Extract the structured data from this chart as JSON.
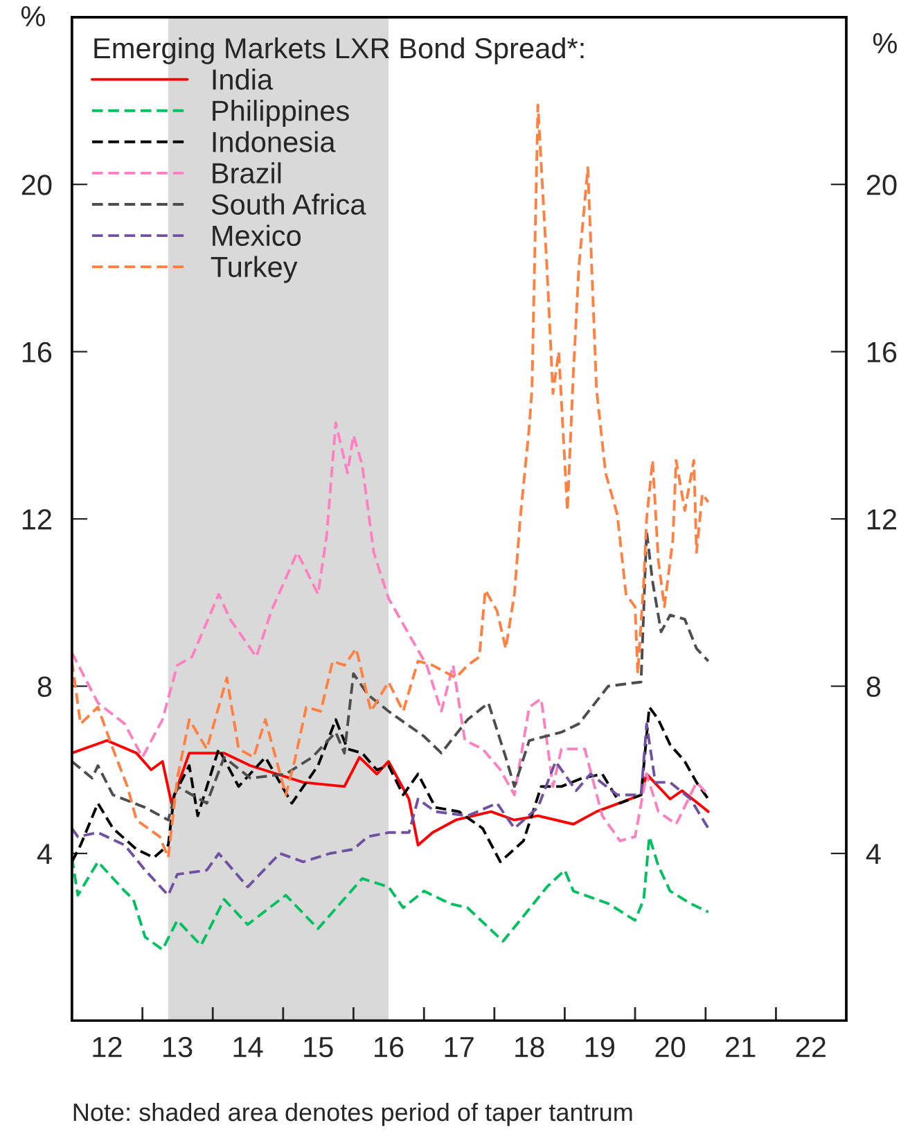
{
  "chart_data": {
    "type": "line",
    "legend_title": "Emerging Markets LXR Bond Spread*:",
    "ylabel": "%",
    "y2label": "%",
    "xlim": [
      "2012-01-01",
      "2023-01-01"
    ],
    "xticks": [
      {
        "value": "2013-01-01",
        "label": null
      },
      {
        "value": "2014-01-01",
        "label": null
      },
      {
        "value": "2015-01-01",
        "label": null
      },
      {
        "value": "2016-01-01",
        "label": null
      },
      {
        "value": "2017-01-01",
        "label": null
      },
      {
        "value": "2018-01-01",
        "label": null
      },
      {
        "value": "2019-01-01",
        "label": null
      },
      {
        "value": "2020-01-01",
        "label": null
      },
      {
        "value": "2021-01-01",
        "label": null
      },
      {
        "value": "2022-01-01",
        "label": null
      },
      {
        "value": "2012-07-01",
        "label": "12"
      },
      {
        "value": "2013-07-01",
        "label": "13"
      },
      {
        "value": "2014-07-01",
        "label": "14"
      },
      {
        "value": "2015-07-01",
        "label": "15"
      },
      {
        "value": "2016-07-01",
        "label": "16"
      },
      {
        "value": "2017-07-01",
        "label": "17"
      },
      {
        "value": "2018-07-01",
        "label": "18"
      },
      {
        "value": "2019-07-01",
        "label": "19"
      },
      {
        "value": "2020-07-01",
        "label": "20"
      },
      {
        "value": "2021-07-01",
        "label": "21"
      },
      {
        "value": "2022-07-01",
        "label": "22"
      }
    ],
    "ylim": [
      0,
      24
    ],
    "yticks": [
      4,
      8,
      12,
      16,
      20
    ],
    "y2lim": [
      0,
      24
    ],
    "y2ticks": [
      4,
      8,
      12,
      16,
      20
    ],
    "grid": false,
    "legend": "top left",
    "bands": [
      {
        "axis": "x",
        "from": "2013-05-15",
        "to": "2016-07-01",
        "color": "#d9d9d9"
      }
    ],
    "annotations": [
      "Note: shaded area denotes period of taper tantrum"
    ],
    "series": [
      {
        "name": "India",
        "color": "#ff0000",
        "line_style": "solid",
        "x": [
          "2012-01-01",
          "2012-07-01",
          "2012-12-01",
          "2013-02-15",
          "2013-04-15",
          "2013-06-01",
          "2013-09-01",
          "2014-03-01",
          "2014-07-15",
          "2015-04-15",
          "2015-11-15",
          "2016-02-01",
          "2016-05-01",
          "2016-07-01",
          "2016-10-15",
          "2016-12-01",
          "2017-02-15",
          "2017-06-15",
          "2017-12-15",
          "2018-04-15",
          "2018-08-15",
          "2019-02-15",
          "2019-06-15",
          "2020-02-01",
          "2020-03-01",
          "2020-07-01",
          "2020-09-01",
          "2021-01-15"
        ],
        "values": [
          6.4,
          6.7,
          6.4,
          6.0,
          6.2,
          5.2,
          6.4,
          6.4,
          6.1,
          5.7,
          5.6,
          6.3,
          5.9,
          6.2,
          5.3,
          4.2,
          4.5,
          4.8,
          5.0,
          4.8,
          4.9,
          4.7,
          5.0,
          5.4,
          5.9,
          5.3,
          5.5,
          5.0
        ]
      },
      {
        "name": "Philippines",
        "color": "#00c060",
        "line_style": "dashed",
        "x": [
          "2012-01-01",
          "2012-02-01",
          "2012-05-15",
          "2012-10-01",
          "2012-11-15",
          "2013-01-15",
          "2013-04-15",
          "2013-07-01",
          "2013-11-01",
          "2014-03-01",
          "2014-07-01",
          "2015-01-15",
          "2015-07-01",
          "2015-12-01",
          "2016-02-15",
          "2016-07-01",
          "2016-09-15",
          "2017-01-01",
          "2017-05-15",
          "2017-08-15",
          "2018-02-15",
          "2018-06-01",
          "2018-10-01",
          "2019-01-01",
          "2019-02-15",
          "2019-08-15",
          "2020-01-01",
          "2020-02-15",
          "2020-03-15",
          "2020-05-01",
          "2020-07-01",
          "2020-10-15",
          "2021-01-15"
        ],
        "values": [
          3.9,
          3.0,
          3.8,
          3.1,
          2.9,
          2.0,
          1.7,
          2.4,
          1.8,
          2.9,
          2.3,
          3.0,
          2.2,
          3.0,
          3.4,
          3.2,
          2.7,
          3.1,
          2.8,
          2.7,
          1.9,
          2.5,
          3.2,
          3.6,
          3.1,
          2.8,
          2.4,
          2.9,
          4.4,
          3.7,
          3.1,
          2.8,
          2.6
        ]
      },
      {
        "name": "Indonesia",
        "color": "#000000",
        "line_style": "dashed",
        "x": [
          "2012-01-01",
          "2012-02-15",
          "2012-05-15",
          "2012-08-01",
          "2012-12-01",
          "2013-03-01",
          "2013-05-15",
          "2013-06-15",
          "2013-09-01",
          "2013-10-15",
          "2014-02-01",
          "2014-05-15",
          "2014-10-01",
          "2015-02-15",
          "2015-07-01",
          "2015-10-01",
          "2015-12-01",
          "2016-02-15",
          "2016-05-01",
          "2016-07-01",
          "2016-09-15",
          "2016-12-01",
          "2017-03-01",
          "2017-07-01",
          "2017-11-01",
          "2018-02-01",
          "2018-06-01",
          "2018-09-01",
          "2018-12-15",
          "2019-04-01",
          "2019-07-15",
          "2019-10-15",
          "2020-02-01",
          "2020-03-15",
          "2020-05-01",
          "2020-07-01",
          "2020-09-15",
          "2020-11-15",
          "2021-01-15"
        ],
        "values": [
          3.8,
          4.2,
          5.2,
          4.6,
          4.1,
          3.9,
          4.2,
          5.4,
          6.1,
          4.9,
          6.5,
          5.6,
          6.3,
          5.2,
          6.1,
          7.2,
          6.5,
          6.4,
          6.0,
          6.1,
          5.4,
          5.9,
          5.1,
          5.0,
          4.6,
          3.8,
          4.3,
          5.6,
          5.6,
          5.8,
          5.9,
          5.2,
          5.4,
          7.5,
          7.2,
          6.6,
          6.2,
          5.7,
          5.3
        ]
      },
      {
        "name": "Brazil",
        "color": "#ff80c0",
        "line_style": "dashed",
        "x": [
          "2012-01-01",
          "2012-05-15",
          "2012-10-01",
          "2013-01-01",
          "2013-04-15",
          "2013-07-01",
          "2013-09-15",
          "2014-02-01",
          "2014-04-01",
          "2014-08-15",
          "2014-11-01",
          "2015-03-15",
          "2015-07-01",
          "2015-08-15",
          "2015-10-01",
          "2015-12-01",
          "2016-01-01",
          "2016-02-15",
          "2016-04-15",
          "2016-07-01",
          "2016-11-01",
          "2017-01-15",
          "2017-04-01",
          "2017-06-01",
          "2017-08-01",
          "2017-11-01",
          "2018-02-01",
          "2018-04-15",
          "2018-07-01",
          "2018-09-01",
          "2018-11-01",
          "2018-12-15",
          "2019-04-15",
          "2019-07-15",
          "2019-10-15",
          "2020-01-01",
          "2020-03-01",
          "2020-05-01",
          "2020-08-01",
          "2020-11-15",
          "2021-01-15"
        ],
        "values": [
          8.8,
          7.6,
          7.1,
          6.3,
          7.2,
          8.5,
          8.7,
          10.2,
          9.6,
          8.7,
          9.8,
          11.2,
          10.2,
          11.6,
          14.3,
          13.1,
          14.0,
          13.3,
          11.2,
          10.1,
          9.1,
          8.5,
          7.4,
          8.5,
          6.7,
          6.5,
          6.0,
          5.4,
          7.5,
          7.7,
          5.6,
          6.5,
          6.5,
          4.9,
          4.3,
          4.4,
          5.9,
          5.0,
          4.7,
          5.7,
          5.4
        ]
      },
      {
        "name": "South Africa",
        "color": "#4d4d4d",
        "line_style": "dashed",
        "x": [
          "2012-01-01",
          "2012-04-15",
          "2012-05-15",
          "2012-08-01",
          "2013-01-15",
          "2013-05-15",
          "2013-07-01",
          "2013-12-01",
          "2014-03-01",
          "2014-07-15",
          "2015-01-15",
          "2015-06-01",
          "2015-10-01",
          "2015-11-15",
          "2016-01-01",
          "2016-03-15",
          "2016-07-01",
          "2017-01-01",
          "2017-04-01",
          "2017-08-15",
          "2017-12-01",
          "2018-03-01",
          "2018-04-15",
          "2018-07-01",
          "2018-12-15",
          "2019-03-15",
          "2019-08-15",
          "2020-02-01",
          "2020-03-01",
          "2020-04-01",
          "2020-05-15",
          "2020-07-01",
          "2020-09-15",
          "2020-11-15",
          "2021-01-15"
        ],
        "values": [
          6.2,
          5.8,
          6.1,
          5.4,
          5.1,
          4.8,
          5.6,
          5.2,
          6.3,
          5.8,
          5.9,
          6.3,
          6.9,
          6.4,
          8.3,
          7.8,
          7.4,
          6.8,
          6.4,
          7.2,
          7.6,
          6.3,
          5.6,
          6.7,
          6.9,
          7.1,
          8.0,
          8.1,
          11.7,
          10.5,
          9.3,
          9.7,
          9.6,
          8.9,
          8.6
        ]
      },
      {
        "name": "Mexico",
        "color": "#7050a0",
        "line_style": "dashed",
        "x": [
          "2012-01-01",
          "2012-02-01",
          "2012-05-15",
          "2012-10-01",
          "2013-01-15",
          "2013-05-15",
          "2013-07-01",
          "2013-12-01",
          "2014-02-01",
          "2014-07-01",
          "2014-12-15",
          "2015-04-15",
          "2015-09-01",
          "2016-01-01",
          "2016-03-15",
          "2016-07-01",
          "2016-10-15",
          "2016-12-01",
          "2017-03-01",
          "2017-08-15",
          "2018-01-15",
          "2018-04-15",
          "2018-08-15",
          "2018-11-15",
          "2019-03-01",
          "2019-05-15",
          "2019-10-01",
          "2020-02-01",
          "2020-03-01",
          "2020-04-15",
          "2020-07-01",
          "2020-10-15",
          "2021-01-15"
        ],
        "values": [
          4.6,
          4.4,
          4.5,
          4.2,
          3.6,
          3.0,
          3.5,
          3.6,
          4.0,
          3.2,
          4.0,
          3.8,
          4.0,
          4.1,
          4.4,
          4.5,
          4.5,
          5.3,
          5.0,
          4.9,
          5.2,
          4.6,
          5.1,
          6.2,
          5.5,
          5.9,
          5.4,
          5.4,
          7.1,
          5.7,
          5.7,
          5.3,
          4.6
        ]
      },
      {
        "name": "Turkey",
        "color": "#ff8040",
        "line_style": "dashed",
        "x": [
          "2012-01-01",
          "2012-02-15",
          "2012-05-15",
          "2012-08-01",
          "2012-10-15",
          "2012-12-01",
          "2013-04-01",
          "2013-05-15",
          "2013-07-01",
          "2013-09-01",
          "2013-12-01",
          "2014-03-15",
          "2014-05-15",
          "2014-08-01",
          "2014-10-01",
          "2015-01-15",
          "2015-03-01",
          "2015-05-01",
          "2015-07-15",
          "2015-09-15",
          "2015-11-15",
          "2016-01-15",
          "2016-04-01",
          "2016-07-01",
          "2016-09-15",
          "2016-12-01",
          "2017-02-15",
          "2017-06-15",
          "2017-08-15",
          "2017-10-15",
          "2017-11-15",
          "2018-01-15",
          "2018-03-01",
          "2018-04-15",
          "2018-05-15",
          "2018-07-01",
          "2018-07-15",
          "2018-08-15",
          "2018-10-01",
          "2018-11-01",
          "2018-12-01",
          "2019-01-15",
          "2019-02-15",
          "2019-03-15",
          "2019-05-01",
          "2019-06-15",
          "2019-08-01",
          "2019-10-01",
          "2019-11-15",
          "2020-01-01",
          "2020-01-15",
          "2020-02-15",
          "2020-03-01",
          "2020-04-01",
          "2020-05-01",
          "2020-06-01",
          "2020-07-15",
          "2020-08-01",
          "2020-09-15",
          "2020-11-01",
          "2020-11-15",
          "2020-12-15",
          "2021-01-15"
        ],
        "values": [
          8.6,
          7.1,
          7.5,
          6.5,
          5.6,
          4.8,
          4.4,
          3.9,
          5.8,
          7.2,
          6.5,
          8.2,
          6.5,
          6.3,
          7.2,
          5.4,
          6.2,
          7.5,
          7.4,
          8.6,
          8.5,
          8.9,
          7.4,
          8.1,
          7.4,
          8.6,
          8.5,
          8.2,
          8.5,
          8.7,
          10.3,
          9.8,
          8.9,
          10.2,
          12.0,
          14.2,
          15.1,
          21.9,
          18.0,
          15.0,
          16.0,
          12.2,
          15.5,
          18.0,
          20.4,
          15.1,
          13.1,
          12.1,
          10.2,
          9.9,
          8.3,
          10.5,
          12.0,
          13.4,
          11.0,
          9.9,
          11.5,
          13.4,
          12.2,
          13.4,
          11.2,
          12.6,
          12.4
        ]
      }
    ]
  }
}
